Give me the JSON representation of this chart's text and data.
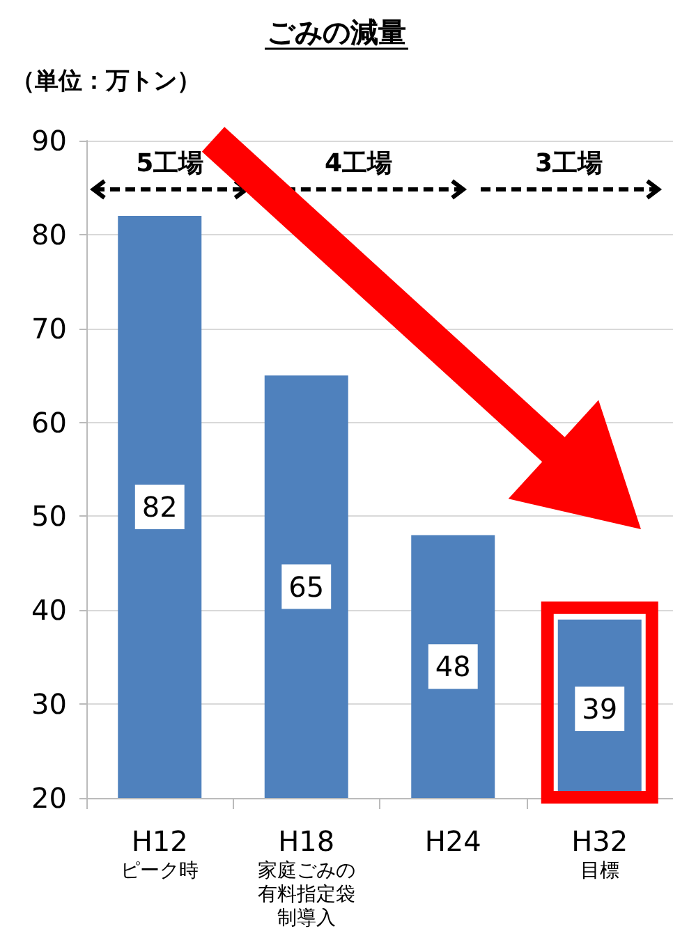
{
  "chart_data": {
    "type": "bar",
    "title": "ごみの減量",
    "ylabel": "（単位：万トン）",
    "categories": [
      "H12\nピーク時",
      "H18\n家庭ごみの有料指定袋制導入",
      "H24",
      "H32\n目標"
    ],
    "values": [
      82,
      65,
      48,
      39
    ],
    "color": "#4f81bd",
    "ylim": [
      20,
      90
    ],
    "yticks": [
      20,
      30,
      40,
      50,
      60,
      70,
      80,
      90
    ],
    "grid": "y",
    "data_labels": true,
    "annotations": [
      "5工場",
      "4工場",
      "3工場"
    ]
  }
}
